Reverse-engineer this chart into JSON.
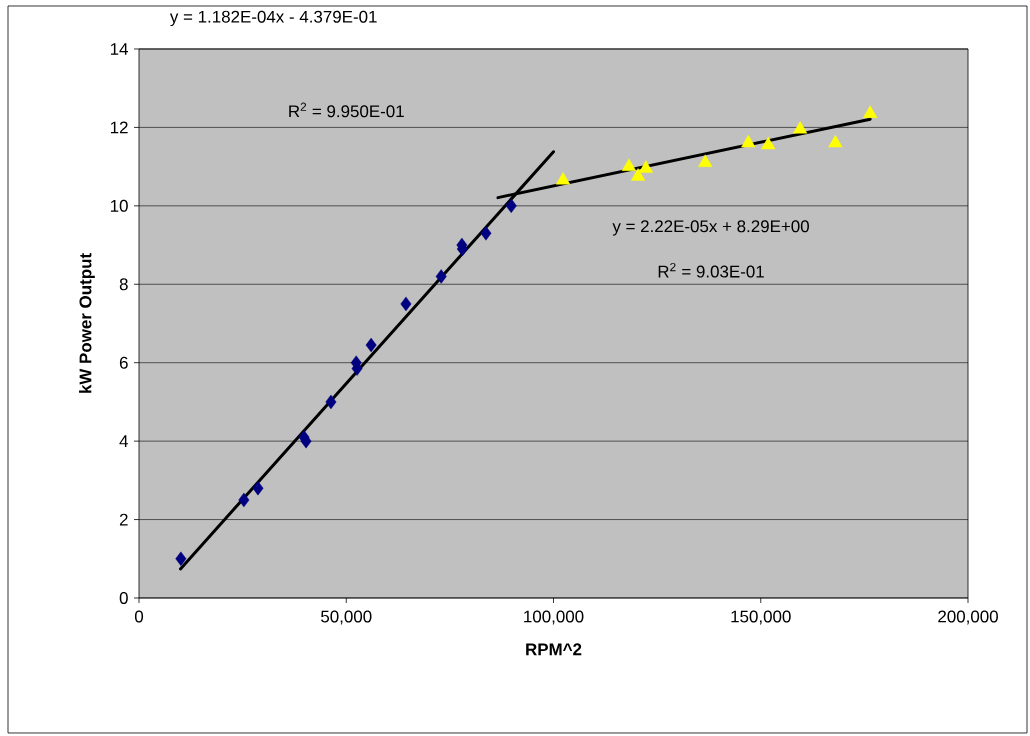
{
  "chart_data": {
    "type": "scatter",
    "xlabel": "RPM^2",
    "ylabel": "kW Power Output",
    "annotations": [
      "y = 1.182E-04x - 4.379E-01",
      "R$^{2}$ = 9.950E-01",
      "y = 2.22E-05x + 8.29E+00",
      "R$^{2}$ = 9.03E-01"
    ],
    "series": [
      {
        "color": "#000080",
        "marker": "diamond",
        "x": [
          10100,
          25300,
          28700,
          39800,
          40300,
          46300,
          52400,
          52600,
          56000,
          64400,
          72900,
          77900,
          78000,
          83700,
          89800
        ],
        "values": [
          1.0,
          2.5,
          2.8,
          4.1,
          4.0,
          5.0,
          6.0,
          5.85,
          6.45,
          7.5,
          8.2,
          9.0,
          8.9,
          9.3,
          10.0
        ]
      },
      {
        "color": "#ffff00",
        "marker": "triangle",
        "x": [
          102300,
          118200,
          120400,
          122300,
          136600,
          147000,
          151800,
          159500,
          168000,
          176400
        ],
        "values": [
          10.65,
          11.0,
          10.75,
          10.95,
          11.1,
          11.6,
          11.55,
          11.95,
          11.6,
          12.35
        ]
      },
      {
        "type": "line",
        "color": "#000000",
        "x": [
          10000,
          100000
        ],
        "values": [
          0.74,
          11.38
        ]
      },
      {
        "type": "line",
        "color": "#000000",
        "x": [
          86600,
          176400
        ],
        "values": [
          10.21,
          12.21
        ]
      }
    ],
    "xlim": [
      0,
      200000
    ],
    "ylim": [
      0,
      14
    ],
    "xticks": [
      0,
      {
        "value": 50000,
        "label": "50,000"
      },
      {
        "value": 100000,
        "label": "100,000"
      },
      {
        "value": 150000,
        "label": "150,000"
      },
      {
        "value": 200000,
        "label": "200,000"
      }
    ],
    "yticks": [
      0,
      2,
      4,
      6,
      8,
      10,
      12,
      14
    ],
    "grid": "y"
  }
}
